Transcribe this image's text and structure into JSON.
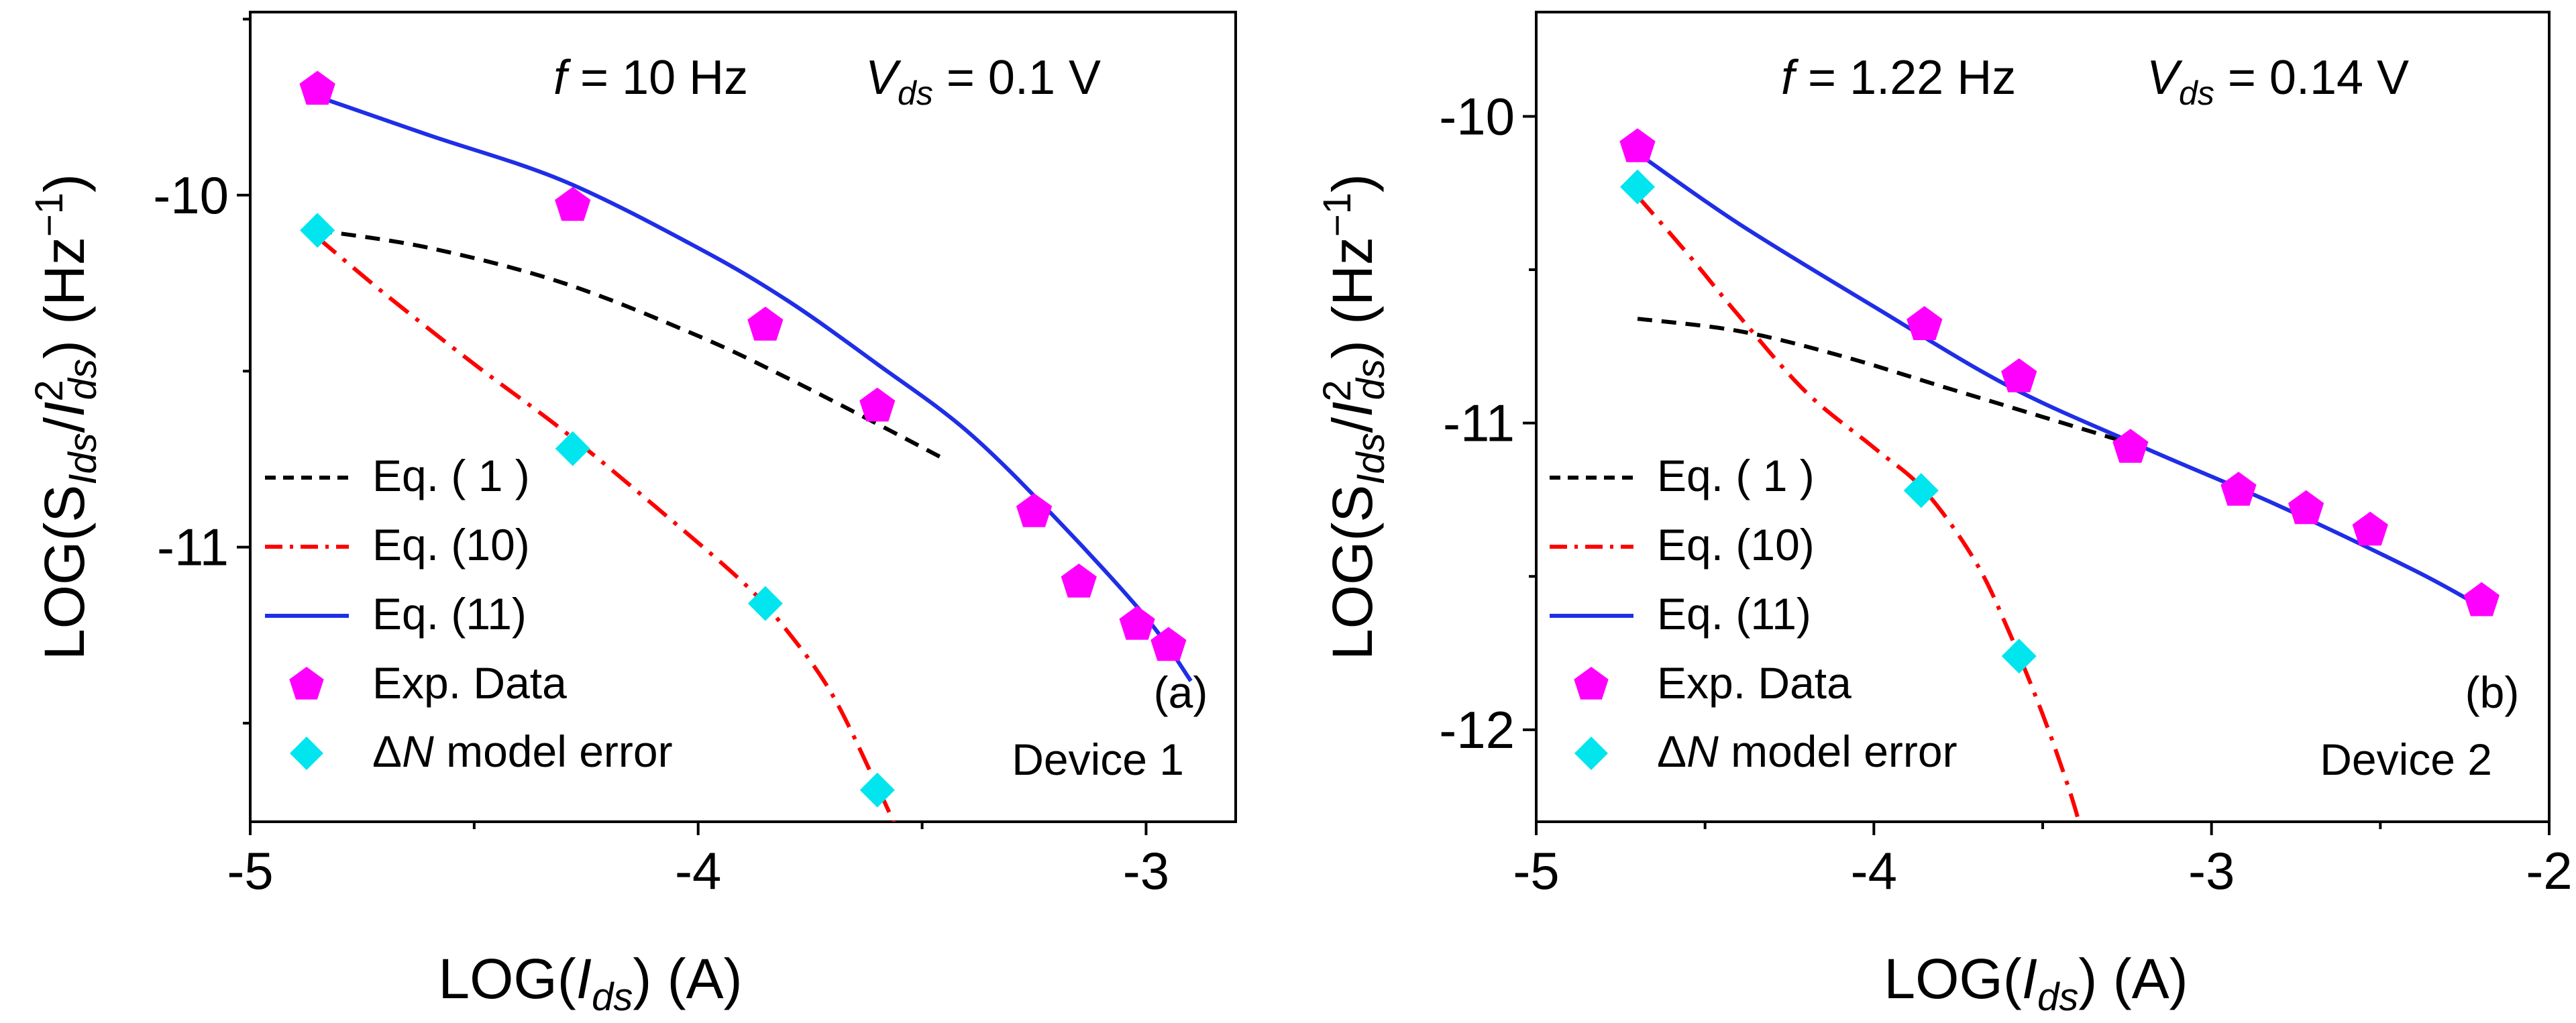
{
  "chart_data": [
    {
      "type": "line",
      "panel_label": "(a)",
      "device_label": "Device 1",
      "condition": {
        "f_symbol": "f",
        "f_text": " = 10 Hz",
        "v_symbol": "V",
        "v_sub": "ds",
        "v_text": " = 0.1 V"
      },
      "x_title": {
        "pre": "LOG(",
        "italic": "I",
        "sub": "ds",
        "post": ") (A)"
      },
      "y_title": {
        "pre": "LOG(S",
        "sub1": "Ids",
        "mid": "/",
        "italic": "I",
        "sup": "2",
        "sub2": "ds",
        "post": ") (Hz",
        "sup_post": "−1",
        "close": ")"
      },
      "xlim": [
        -5.0,
        -2.8
      ],
      "ylim": [
        -11.78,
        -9.48
      ],
      "xticks": [
        -5,
        -4,
        -3
      ],
      "xtick_labels": [
        "-5",
        "-4",
        "-3"
      ],
      "yticks": [
        -10,
        -11
      ],
      "ytick_labels": [
        "-10",
        "-11"
      ],
      "series": [
        {
          "name": "Eq. ( 1 )",
          "style": "dashed",
          "color": "#000000",
          "x": [
            -4.85,
            -4.6,
            -4.3,
            -4.0,
            -3.8,
            -3.6,
            -3.45
          ],
          "y": [
            -10.1,
            -10.15,
            -10.25,
            -10.4,
            -10.52,
            -10.65,
            -10.75
          ]
        },
        {
          "name": "Eq. (10)",
          "style": "dash-dot",
          "color": "#ff0000",
          "x": [
            -4.85,
            -4.7,
            -4.5,
            -4.3,
            -4.1,
            -3.9,
            -3.8,
            -3.7,
            -3.6,
            -3.55
          ],
          "y": [
            -10.12,
            -10.28,
            -10.48,
            -10.67,
            -10.88,
            -11.1,
            -11.24,
            -11.42,
            -11.68,
            -11.82
          ]
        },
        {
          "name": "Eq. (11)",
          "style": "solid",
          "color": "#1f2ee6",
          "x": [
            -4.85,
            -4.6,
            -4.3,
            -4.0,
            -3.8,
            -3.6,
            -3.4,
            -3.2,
            -3.0,
            -2.9
          ],
          "y": [
            -9.72,
            -9.83,
            -9.96,
            -10.15,
            -10.3,
            -10.48,
            -10.67,
            -10.92,
            -11.2,
            -11.38
          ]
        },
        {
          "name": "Exp. Data",
          "style": "marker-pentagon",
          "color": "#ff00ff",
          "x": [
            -4.85,
            -4.28,
            -3.85,
            -3.6,
            -3.25,
            -3.15,
            -3.02,
            -2.95
          ],
          "y": [
            -9.7,
            -10.03,
            -10.37,
            -10.6,
            -10.9,
            -11.1,
            -11.22,
            -11.28
          ]
        },
        {
          "name": "ΔN model error",
          "style": "marker-diamond",
          "color": "#00e5ee",
          "x": [
            -4.85,
            -4.28,
            -3.85,
            -3.6
          ],
          "y": [
            -10.1,
            -10.72,
            -11.16,
            -11.69
          ]
        }
      ],
      "legend": [
        {
          "label": "Eq. ( 1 )"
        },
        {
          "label": "Eq. (10)"
        },
        {
          "label": "Eq. (11)"
        },
        {
          "label": "Exp. Data"
        },
        {
          "label_pre": "Δ",
          "label_italic": "N",
          "label_post": " model error"
        }
      ]
    },
    {
      "type": "line",
      "panel_label": "(b)",
      "device_label": "Device 2",
      "condition": {
        "f_symbol": "f",
        "f_text": " = 1.22 Hz",
        "v_symbol": "V",
        "v_sub": "ds",
        "v_text": " = 0.14 V"
      },
      "x_title": {
        "pre": "LOG(",
        "italic": "I",
        "sub": "ds",
        "post": ") (A)"
      },
      "y_title": {
        "pre": "LOG(S",
        "sub1": "Ids",
        "mid": "/",
        "italic": "I",
        "sup": "2",
        "sub2": "ds",
        "post": ") (Hz",
        "sup_post": "−1",
        "close": ")"
      },
      "xlim": [
        -5.0,
        -2.0
      ],
      "ylim": [
        -12.3,
        -9.66
      ],
      "xticks": [
        -5,
        -4,
        -3,
        -2
      ],
      "xtick_labels": [
        "-5",
        "-4",
        "-3",
        "-2"
      ],
      "yticks": [
        -10,
        -11,
        -12
      ],
      "ytick_labels": [
        "-10",
        "-11",
        "-12"
      ],
      "series": [
        {
          "name": "Eq. ( 1 )",
          "style": "dashed",
          "color": "#000000",
          "x": [
            -4.7,
            -4.4,
            -4.1,
            -3.8,
            -3.5,
            -3.2
          ],
          "y": [
            -10.66,
            -10.7,
            -10.78,
            -10.88,
            -10.98,
            -11.08
          ]
        },
        {
          "name": "Eq. (10)",
          "style": "dash-dot",
          "color": "#ff0000",
          "x": [
            -4.7,
            -4.55,
            -4.4,
            -4.2,
            -4.0,
            -3.85,
            -3.7,
            -3.6,
            -3.5,
            -3.42,
            -3.38
          ],
          "y": [
            -10.26,
            -10.45,
            -10.65,
            -10.9,
            -11.08,
            -11.22,
            -11.45,
            -11.68,
            -11.95,
            -12.2,
            -12.35
          ]
        },
        {
          "name": "Eq. (11)",
          "style": "solid",
          "color": "#1f2ee6",
          "x": [
            -4.7,
            -4.4,
            -4.0,
            -3.6,
            -3.2,
            -2.8,
            -2.4,
            -2.2
          ],
          "y": [
            -10.12,
            -10.35,
            -10.62,
            -10.88,
            -11.08,
            -11.27,
            -11.48,
            -11.6
          ]
        },
        {
          "name": "Exp. Data",
          "style": "marker-pentagon",
          "color": "#ff00ff",
          "x": [
            -4.7,
            -3.85,
            -3.57,
            -3.24,
            -2.92,
            -2.72,
            -2.53,
            -2.2
          ],
          "y": [
            -10.1,
            -10.68,
            -10.85,
            -11.08,
            -11.22,
            -11.28,
            -11.35,
            -11.58
          ]
        },
        {
          "name": "ΔN model error",
          "style": "marker-diamond",
          "color": "#00e5ee",
          "x": [
            -4.7,
            -3.86,
            -3.57
          ],
          "y": [
            -10.23,
            -11.22,
            -11.76
          ]
        }
      ],
      "legend": [
        {
          "label": "Eq. ( 1 )"
        },
        {
          "label": "Eq. (10)"
        },
        {
          "label": "Eq. (11)"
        },
        {
          "label": "Exp. Data"
        },
        {
          "label_pre": "Δ",
          "label_italic": "N",
          "label_post": " model error"
        }
      ]
    }
  ]
}
